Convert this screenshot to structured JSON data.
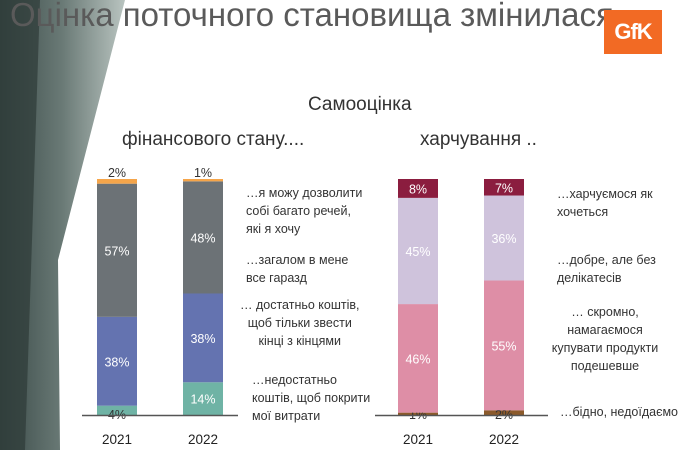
{
  "header": {
    "title": "Оцінка поточного становища змінилася",
    "logo_text": "GfK",
    "subtitle": "Самооцінка"
  },
  "colors": {
    "brand": "#f26a24",
    "finance": [
      "#6fb3a5",
      "#6473b0",
      "#6c7276",
      "#f5a54a"
    ],
    "food": [
      "#8b5a2b",
      "#de8ea6",
      "#cfc3dc",
      "#8b1d3f"
    ]
  },
  "chart_data": [
    {
      "type": "bar",
      "stacked": true,
      "title": "фінансового стану....",
      "categories": [
        "2021",
        "2022"
      ],
      "ylim": [
        0,
        100
      ],
      "series": [
        {
          "name": "…недостатньо коштів, щоб покрити мої витрати",
          "values": [
            4,
            14
          ]
        },
        {
          "name": "… достатньо коштів, щоб тільки звести кінці з кінцями",
          "values": [
            38,
            38
          ]
        },
        {
          "name": "…загалом в мене все гаразд",
          "values": [
            57,
            48
          ]
        },
        {
          "name": "…я можу дозволити собі багато речей, які я хочу",
          "values": [
            2,
            1
          ]
        }
      ],
      "data_labels": [
        [
          "4%",
          "38%",
          "57%",
          "2%"
        ],
        [
          "14%",
          "38%",
          "48%",
          "1%"
        ]
      ]
    },
    {
      "type": "bar",
      "stacked": true,
      "title": "харчування ..",
      "categories": [
        "2021",
        "2022"
      ],
      "ylim": [
        0,
        100
      ],
      "series": [
        {
          "name": "…бідно, недоїдаємо",
          "values": [
            1,
            2
          ]
        },
        {
          "name": "… скромно, намагаємося купувати продукти подешевше",
          "values": [
            46,
            55
          ]
        },
        {
          "name": "…добре, але без делікатесів",
          "values": [
            45,
            36
          ]
        },
        {
          "name": "…харчуємося як хочеться",
          "values": [
            8,
            7
          ]
        }
      ],
      "data_labels": [
        [
          "1%",
          "46%",
          "45%",
          "8%"
        ],
        [
          "2%",
          "55%",
          "36%",
          "7%"
        ]
      ]
    }
  ],
  "notes": {
    "finance": [
      [
        "…я можу дозволити",
        "собі багато речей,",
        "які я хочу"
      ],
      [
        "…загалом в мене",
        "все гаразд"
      ],
      [
        "… достатньо коштів,",
        "щоб тільки звести",
        "кінці з кінцями"
      ],
      [
        "…недостатньо",
        "коштів, щоб покрити",
        "мої витрати"
      ]
    ],
    "food": [
      [
        "…харчуємося як",
        "хочеться"
      ],
      [
        "…добре, але без",
        "делікатесів"
      ],
      [
        "… скромно,",
        "намагаємося",
        "купувати продукти",
        "подешевше"
      ],
      [
        "…бідно, недоїдаємо"
      ]
    ]
  }
}
